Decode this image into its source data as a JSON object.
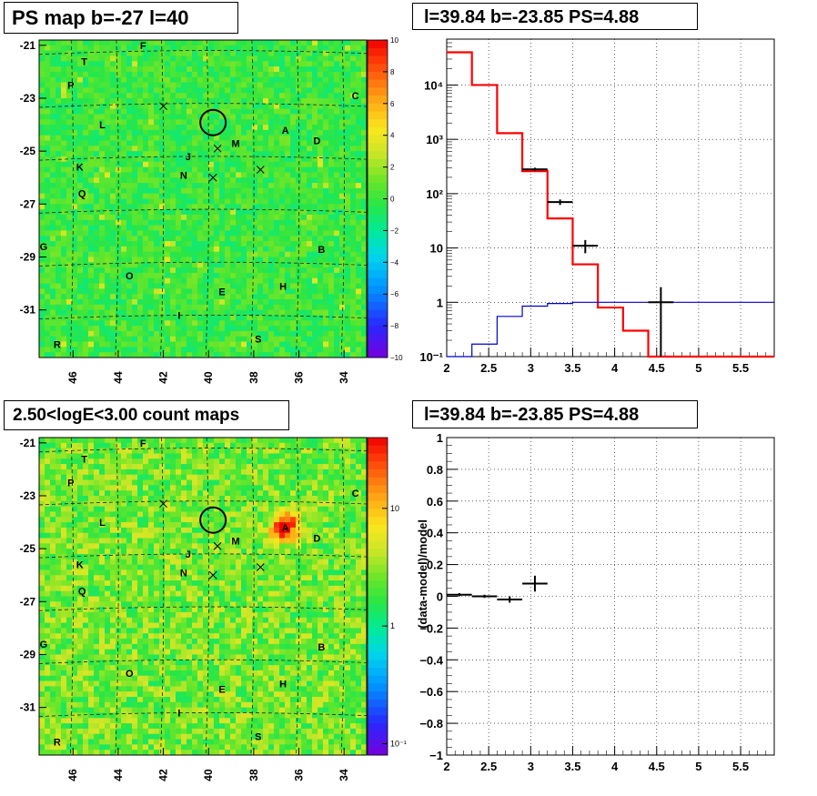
{
  "titles": {
    "map_top": "PS map b=-27 l=40",
    "spec_top": "l=39.84 b=-23.85 PS=4.88",
    "map_bottom": "2.50<logE<3.00 count maps",
    "spec_bottom": "l=39.84 b=-23.85 PS=4.88"
  },
  "sources": [
    {
      "label": "F",
      "l": 42.9,
      "b": -21.0
    },
    {
      "label": "T",
      "l": 45.5,
      "b": -21.6
    },
    {
      "label": "P",
      "l": 46.1,
      "b": -22.5
    },
    {
      "label": "C",
      "l": 33.5,
      "b": -22.9
    },
    {
      "label": "L",
      "l": 44.7,
      "b": -24.0
    },
    {
      "label": "A",
      "l": 36.6,
      "b": -24.2
    },
    {
      "label": "D",
      "l": 35.2,
      "b": -24.6
    },
    {
      "label": "M",
      "l": 38.8,
      "b": -24.7
    },
    {
      "label": "J",
      "l": 40.9,
      "b": -25.2
    },
    {
      "label": "K",
      "l": 45.7,
      "b": -25.6
    },
    {
      "label": "N",
      "l": 41.1,
      "b": -25.9
    },
    {
      "label": "Q",
      "l": 45.6,
      "b": -26.6
    },
    {
      "label": "G",
      "l": 47.3,
      "b": -28.6
    },
    {
      "label": "B",
      "l": 35.0,
      "b": -28.7
    },
    {
      "label": "O",
      "l": 43.5,
      "b": -29.7
    },
    {
      "label": "H",
      "l": 36.7,
      "b": -30.1
    },
    {
      "label": "E",
      "l": 39.4,
      "b": -30.3
    },
    {
      "label": "I",
      "l": 41.3,
      "b": -31.2
    },
    {
      "label": "S",
      "l": 37.8,
      "b": -32.1
    },
    {
      "label": "R",
      "l": 46.7,
      "b": -32.3
    }
  ],
  "crosses": [
    {
      "l": 42.0,
      "b": -23.3
    },
    {
      "l": 39.6,
      "b": -24.9
    },
    {
      "l": 37.7,
      "b": -25.7
    },
    {
      "l": 39.8,
      "b": -26.0
    }
  ],
  "candidate": {
    "l": 39.84,
    "b": -23.85
  },
  "maps": {
    "x_ticks": [
      46,
      44,
      42,
      40,
      38,
      36,
      34
    ],
    "y_ticks": [
      -21,
      -23,
      -25,
      -27,
      -29,
      -31
    ],
    "x_range": [
      47.5,
      33.0
    ],
    "y_range": [
      -20.8,
      -32.8
    ],
    "ps_scale": {
      "ticks": [
        10,
        8,
        6,
        4,
        2,
        0,
        -2,
        -4,
        -6,
        -8,
        -10
      ],
      "labels": [
        "10",
        "8",
        "6",
        "4",
        "2",
        "0",
        "−2",
        "−4",
        "−6",
        "−8",
        "−10"
      ]
    },
    "count_scale": {
      "ticks": [
        {
          "v": 10,
          "label": "10"
        },
        {
          "v": 1,
          "label": "1"
        },
        {
          "v": 0.1,
          "label": "10⁻¹"
        }
      ],
      "range": [
        0.08,
        40
      ]
    },
    "hotspot": {
      "l": 36.6,
      "b": -24.2
    }
  },
  "chart_data": [
    {
      "type": "line",
      "subtitle": "l=39.84 b=-23.85 PS=4.88",
      "xlim": [
        2,
        5.9
      ],
      "ylim": [
        0.1,
        70000
      ],
      "yscale": "log",
      "x_ticks": [
        2,
        2.5,
        3,
        3.5,
        4,
        4.5,
        5,
        5.5
      ],
      "y_ticks": [
        {
          "v": 0.1,
          "label": "10⁻¹"
        },
        {
          "v": 1,
          "label": "1"
        },
        {
          "v": 10,
          "label": "10"
        },
        {
          "v": 100,
          "label": "10²"
        },
        {
          "v": 1000,
          "label": "10³"
        },
        {
          "v": 10000,
          "label": "10⁴"
        }
      ],
      "grid": true,
      "series": [
        {
          "color": "#ff0000",
          "bins": [
            [
              2.0,
              2.3,
              40000
            ],
            [
              2.3,
              2.6,
              10000
            ],
            [
              2.6,
              2.9,
              1300
            ],
            [
              2.9,
              3.2,
              260
            ],
            [
              3.2,
              3.5,
              35
            ],
            [
              3.5,
              3.8,
              5
            ],
            [
              3.8,
              4.1,
              0.8
            ],
            [
              4.1,
              4.4,
              0.3
            ],
            [
              4.4,
              5.9,
              0.1
            ]
          ]
        },
        {
          "color": "#0000cc",
          "bins": [
            [
              2.0,
              2.3,
              0.1
            ],
            [
              2.3,
              2.6,
              0.17
            ],
            [
              2.6,
              2.9,
              0.55
            ],
            [
              2.9,
              3.2,
              0.85
            ],
            [
              3.2,
              3.5,
              0.95
            ],
            [
              3.5,
              5.9,
              1.0
            ]
          ]
        },
        {
          "color": "#000000",
          "points": [
            {
              "x": 3.05,
              "y": 280,
              "xerr": 0.15,
              "ylo": 260,
              "yhi": 300
            },
            {
              "x": 3.35,
              "y": 70,
              "xerr": 0.15,
              "ylo": 62,
              "yhi": 78
            },
            {
              "x": 3.65,
              "y": 11,
              "xerr": 0.15,
              "ylo": 8,
              "yhi": 14
            },
            {
              "x": 4.55,
              "y": 1.0,
              "xerr": 0.15,
              "ylo": 0.1,
              "yhi": 1.9
            }
          ]
        }
      ]
    },
    {
      "type": "scatter",
      "subtitle": "l=39.84 b=-23.85 PS=4.88",
      "ylabel": "(data-model)/model",
      "xlim": [
        2,
        5.9
      ],
      "ylim": [
        -1,
        1
      ],
      "x_ticks": [
        2,
        2.5,
        3,
        3.5,
        4,
        4.5,
        5,
        5.5
      ],
      "y_ticks": [
        {
          "v": -1,
          "label": "−1"
        },
        {
          "v": -0.8,
          "label": "−0.8"
        },
        {
          "v": -0.6,
          "label": "−0.6"
        },
        {
          "v": -0.4,
          "label": "−0.4"
        },
        {
          "v": -0.2,
          "label": "−0.2"
        },
        {
          "v": 0,
          "label": "0"
        },
        {
          "v": 0.2,
          "label": "0.2"
        },
        {
          "v": 0.4,
          "label": "0.4"
        },
        {
          "v": 0.6,
          "label": "0.6"
        },
        {
          "v": 0.8,
          "label": "0.8"
        },
        {
          "v": 1,
          "label": "1"
        }
      ],
      "grid": true,
      "points": [
        {
          "x": 2.15,
          "y": 0.01,
          "xerr": 0.15,
          "yerr": 0.01
        },
        {
          "x": 2.45,
          "y": 0.0,
          "xerr": 0.15,
          "yerr": 0.01
        },
        {
          "x": 2.75,
          "y": -0.02,
          "xerr": 0.15,
          "yerr": 0.02
        },
        {
          "x": 3.05,
          "y": 0.08,
          "xerr": 0.15,
          "yerr": 0.05
        }
      ]
    }
  ]
}
